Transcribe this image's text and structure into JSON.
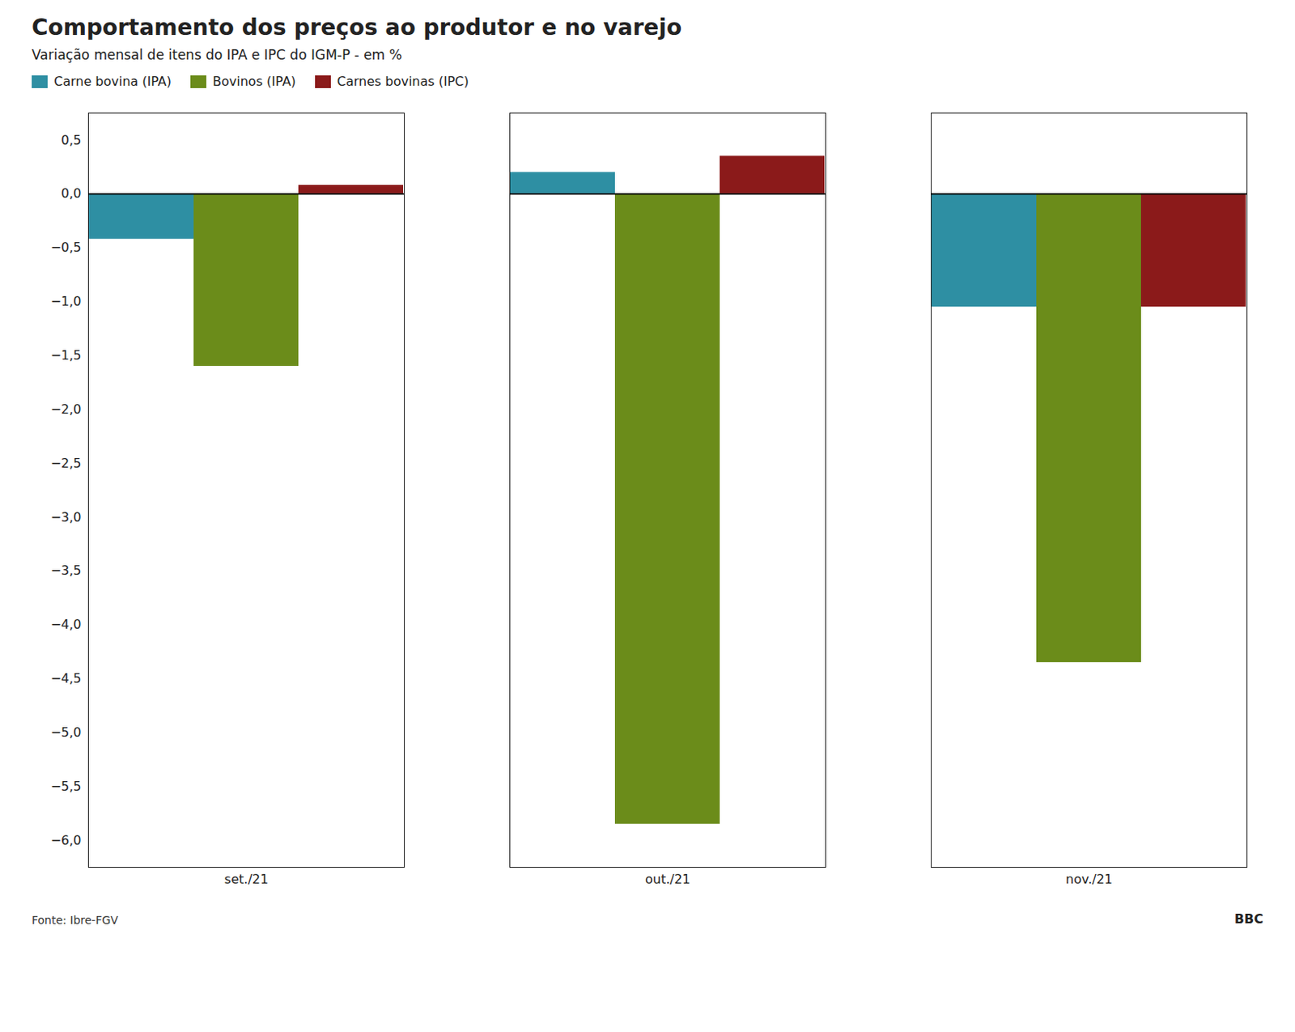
{
  "chart_data": {
    "type": "bar",
    "title": "Comportamento dos preços ao produtor e no varejo",
    "subtitle": "Variação mensal de itens do IPA e IPC do IGM-P - em %",
    "source": "Fonte: Ibre-FGV",
    "annotations": [
      "BBC"
    ],
    "categories": [
      "set./21",
      "out./21",
      "nov./21"
    ],
    "series": [
      {
        "name": "Carne bovina (IPA)",
        "color": "#2e8fa3",
        "values": [
          -0.42,
          0.2,
          -1.05
        ]
      },
      {
        "name": "Bovinos (IPA)",
        "color": "#6b8c1a",
        "values": [
          -1.6,
          -5.85,
          -4.35
        ]
      },
      {
        "name": "Carnes bovinas (IPC)",
        "color": "#8b1a1a",
        "values": [
          0.08,
          0.35,
          -1.05
        ]
      }
    ],
    "ylim": [
      -6.25,
      0.75
    ],
    "yticks": [
      {
        "value": 0.5,
        "label": "0,5"
      },
      {
        "value": 0.0,
        "label": "0,0"
      },
      {
        "value": -0.5,
        "label": "−0,5"
      },
      {
        "value": -1.0,
        "label": "−1,0"
      },
      {
        "value": -1.5,
        "label": "−1,5"
      },
      {
        "value": -2.0,
        "label": "−2,0"
      },
      {
        "value": -2.5,
        "label": "−2,5"
      },
      {
        "value": -3.0,
        "label": "−3,0"
      },
      {
        "value": -3.5,
        "label": "−3,5"
      },
      {
        "value": -4.0,
        "label": "−4,0"
      },
      {
        "value": -4.5,
        "label": "−4,5"
      },
      {
        "value": -5.0,
        "label": "−5,0"
      },
      {
        "value": -5.5,
        "label": "−5,5"
      },
      {
        "value": -6.0,
        "label": "−6,0"
      }
    ],
    "grid": false,
    "legend": "upper left"
  }
}
